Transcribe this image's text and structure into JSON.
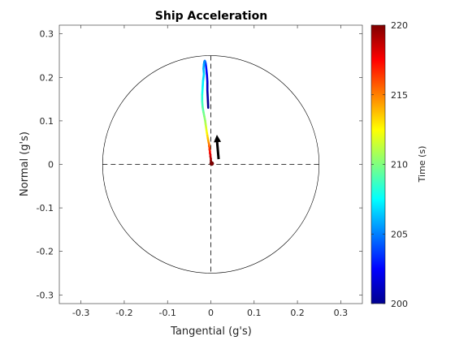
{
  "chart_data": {
    "type": "scatter",
    "title": "Ship Acceleration",
    "xlabel": "Tangential  (g's)",
    "ylabel": "Normal  (g's)",
    "xlim": [
      -0.35,
      0.35
    ],
    "ylim": [
      -0.32,
      0.32
    ],
    "xticks": [
      -0.3,
      -0.2,
      -0.1,
      0,
      0.1,
      0.2,
      0.3
    ],
    "xtick_labels": [
      "-0.3",
      "-0.2",
      "-0.1",
      "0",
      "0.1",
      "0.2",
      "0.3"
    ],
    "yticks": [
      -0.3,
      -0.2,
      -0.1,
      0,
      0.1,
      0.2,
      0.3
    ],
    "ytick_labels": [
      "-0.3",
      "-0.2",
      "-0.1",
      "0",
      "0.1",
      "0.2",
      "0.3"
    ],
    "grid": false,
    "reference_circle_radius": 0.25,
    "crosshair": "dashed",
    "colorbar": {
      "label": "Time  (s)",
      "range": [
        200,
        220
      ],
      "ticks": [
        200,
        205,
        210,
        215,
        220
      ],
      "tick_labels": [
        "200",
        "205",
        "210",
        "215",
        "220"
      ],
      "colormap": "jet"
    },
    "trajectory": {
      "t": [
        200,
        200.5,
        201,
        201.5,
        202,
        202.5,
        203,
        203.5,
        204,
        204.5,
        205,
        205.5,
        206,
        206.5,
        207,
        207.5,
        208,
        208.5,
        209,
        209.5,
        210,
        210.5,
        211,
        211.5,
        212,
        212.5,
        213,
        213.5,
        214,
        214.5,
        215,
        215.5,
        216,
        216.5,
        217,
        217.5,
        218,
        218.5,
        219,
        219.5,
        220
      ],
      "x": [
        -0.006,
        -0.007,
        -0.008,
        -0.008,
        -0.009,
        -0.01,
        -0.011,
        -0.012,
        -0.013,
        -0.014,
        -0.015,
        -0.016,
        -0.017,
        -0.016,
        -0.018,
        -0.019,
        -0.02,
        -0.02,
        -0.019,
        -0.017,
        -0.015,
        -0.013,
        -0.012,
        -0.011,
        -0.01,
        -0.009,
        -0.008,
        -0.007,
        -0.006,
        -0.005,
        -0.004,
        -0.004,
        -0.003,
        -0.003,
        -0.002,
        -0.002,
        -0.001,
        -0.001,
        0.0,
        0.0,
        0.001
      ],
      "y": [
        0.13,
        0.15,
        0.17,
        0.19,
        0.205,
        0.215,
        0.225,
        0.232,
        0.236,
        0.238,
        0.236,
        0.23,
        0.22,
        0.208,
        0.192,
        0.176,
        0.16,
        0.145,
        0.132,
        0.12,
        0.11,
        0.1,
        0.092,
        0.085,
        0.078,
        0.072,
        0.066,
        0.06,
        0.055,
        0.05,
        0.046,
        0.042,
        0.038,
        0.034,
        0.03,
        0.026,
        0.022,
        0.018,
        0.013,
        0.008,
        0.003
      ]
    },
    "current_marker": {
      "x": 0.002,
      "y": 0.002
    },
    "acceleration_arrow": {
      "x0": 0.018,
      "y0": 0.012,
      "x1": 0.014,
      "y1": 0.068
    }
  }
}
